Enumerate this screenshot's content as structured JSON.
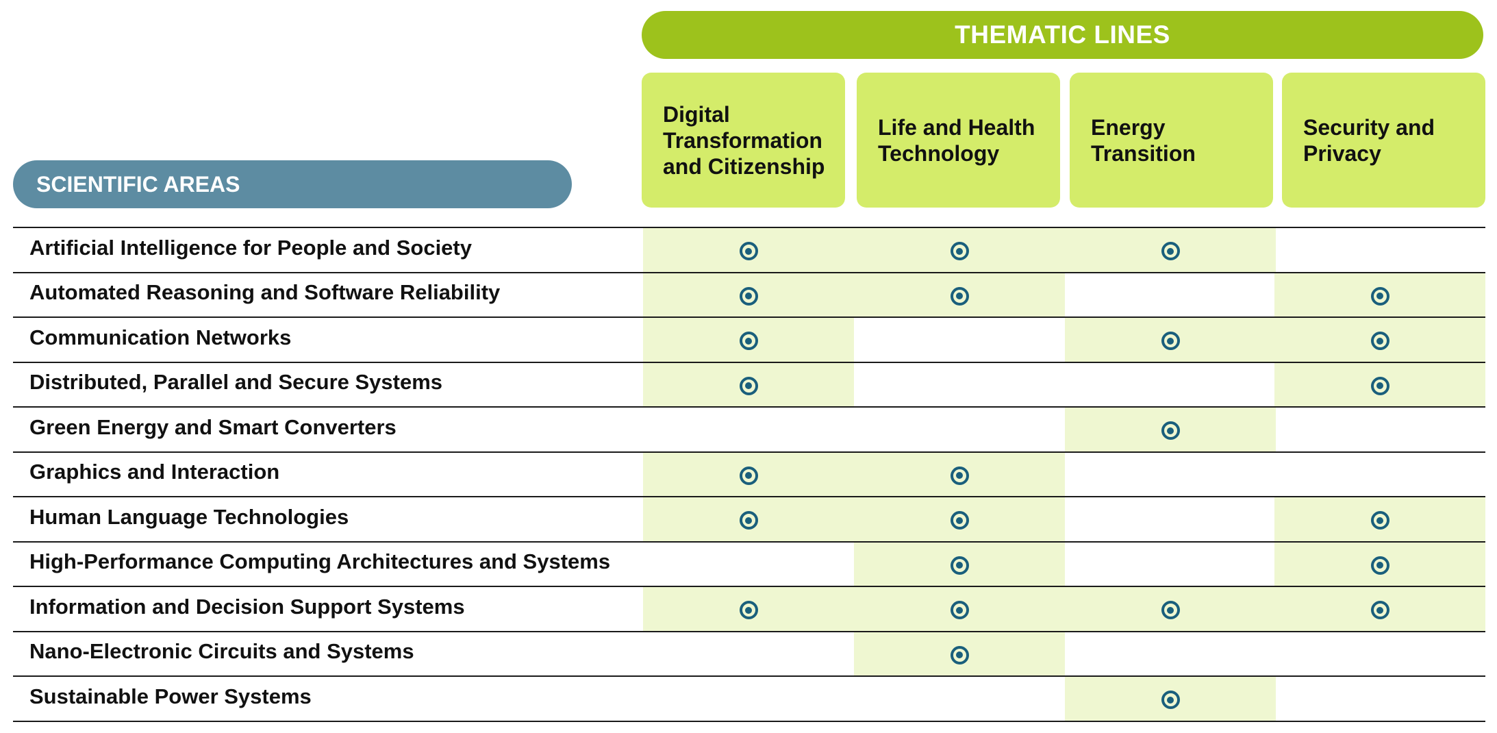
{
  "thematic_title": "THEMATIC LINES",
  "areas_title": "SCIENTIFIC AREAS",
  "themes": [
    "Digital Transformation and Citizenship",
    "Life and Health Technology",
    "Energy Transition",
    "Security and Privacy"
  ],
  "colors": {
    "thematic_banner": "#9dc21c",
    "theme_header": "#d4ec6a",
    "areas_banner": "#5d8ca2",
    "cell_highlight": "#eff7d1",
    "mark": "#1a5f7c"
  },
  "mark_icon": "radio-dot-icon",
  "rows": [
    {
      "label": "Artificial Intelligence for People and Society",
      "marks": [
        true,
        true,
        true,
        false
      ]
    },
    {
      "label": "Automated Reasoning and Software Reliability",
      "marks": [
        true,
        true,
        false,
        true
      ]
    },
    {
      "label": "Communication Networks",
      "marks": [
        true,
        false,
        true,
        true
      ]
    },
    {
      "label": "Distributed, Parallel and Secure Systems",
      "marks": [
        true,
        false,
        false,
        true
      ]
    },
    {
      "label": "Green Energy and Smart Converters",
      "marks": [
        false,
        false,
        true,
        false
      ]
    },
    {
      "label": "Graphics and Interaction",
      "marks": [
        true,
        true,
        false,
        false
      ]
    },
    {
      "label": "Human Language Technologies",
      "marks": [
        true,
        true,
        false,
        true
      ]
    },
    {
      "label": "High-Performance Computing Architectures and Systems",
      "marks": [
        false,
        true,
        false,
        true
      ]
    },
    {
      "label": "Information and Decision Support Systems",
      "marks": [
        true,
        true,
        true,
        true
      ]
    },
    {
      "label": "Nano-Electronic Circuits and Systems",
      "marks": [
        false,
        true,
        false,
        false
      ]
    },
    {
      "label": "Sustainable Power Systems",
      "marks": [
        false,
        false,
        true,
        false
      ]
    }
  ]
}
